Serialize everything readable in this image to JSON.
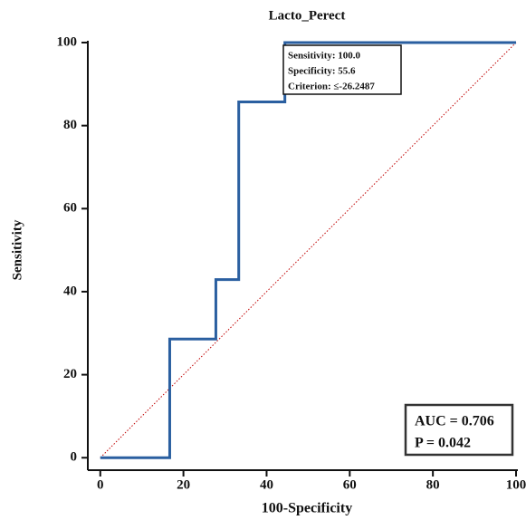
{
  "chart_data": {
    "type": "line",
    "title": "Lacto_Perect",
    "xlabel": "100-Specificity",
    "ylabel": "Sensitivity",
    "x": [
      0,
      16.7,
      16.7,
      27.8,
      27.8,
      33.3,
      33.3,
      44.4,
      44.4,
      100
    ],
    "series": [
      {
        "color": "#2a5fa0",
        "values": [
          0,
          0,
          28.6,
          28.6,
          42.9,
          42.9,
          85.7,
          85.7,
          100,
          100
        ]
      }
    ],
    "reference_line": {
      "x": [
        0,
        100
      ],
      "values": [
        0,
        100
      ],
      "color": "#c00000"
    },
    "xlim": [
      -3,
      100
    ],
    "ylim": [
      -3,
      100
    ],
    "xticks": [
      0,
      20,
      40,
      60,
      80,
      100
    ],
    "yticks": [
      0,
      20,
      40,
      60,
      80,
      100
    ],
    "criterion_box": [
      "Sensitivity: 100.0",
      "Specificity: 55.6",
      "Criterion: ≤-26.2487"
    ],
    "auc_box": [
      "AUC = 0.706",
      "P = 0.042"
    ]
  }
}
